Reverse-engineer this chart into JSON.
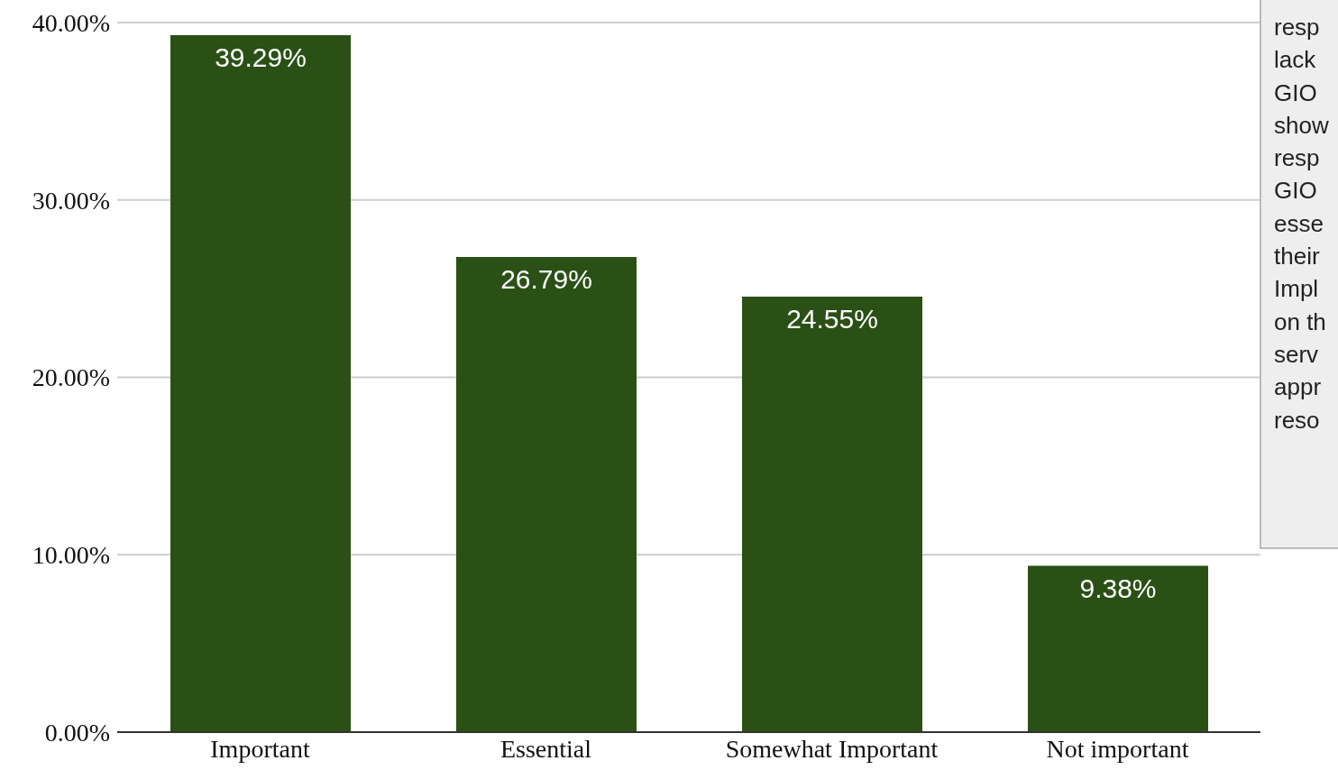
{
  "chart_data": {
    "type": "bar",
    "categories": [
      "Important",
      "Essential",
      "Somewhat Important",
      "Not important"
    ],
    "values": [
      39.29,
      26.79,
      24.55,
      9.38
    ],
    "value_labels": [
      "39.29%",
      "26.79%",
      "24.55%",
      "9.38%"
    ],
    "color": "#2a5016",
    "ylim": [
      0,
      40
    ],
    "yticks": [
      {
        "value": 0,
        "label": "0.00%"
      },
      {
        "value": 10,
        "label": "10.00%"
      },
      {
        "value": 20,
        "label": "20.00%"
      },
      {
        "value": 30,
        "label": "30.00%"
      },
      {
        "value": 40,
        "label": "40.00%"
      }
    ],
    "grid": "y",
    "annotations": [
      "resp\nlack\nGIO\nshow\nresp\nGIO\nesse\ntheir\nImpl\non th\nserv\nappr\nreso"
    ]
  }
}
